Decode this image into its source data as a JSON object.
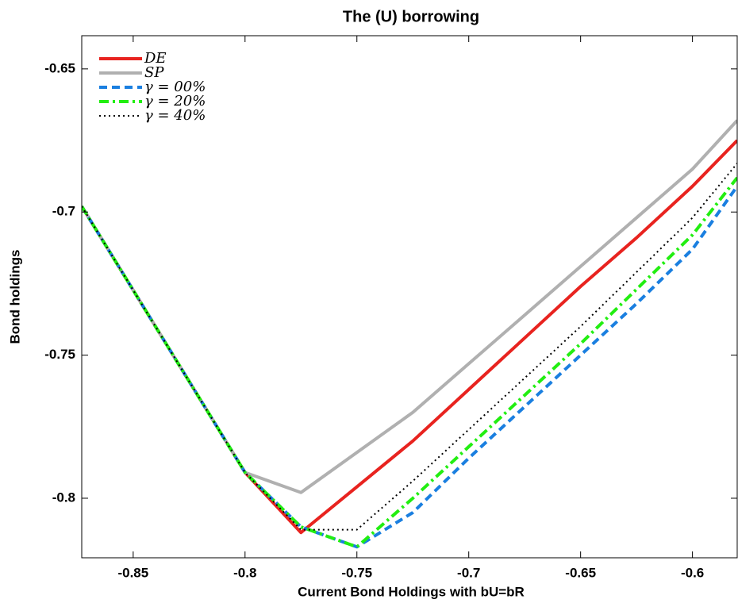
{
  "chart_data": {
    "type": "line",
    "title": "The (U) borrowing",
    "x_label": "Current Bond Holdings with bU=bR",
    "y_label": "Bond holdings",
    "x": [
      -0.873,
      -0.8,
      -0.775,
      -0.75,
      -0.725,
      -0.7,
      -0.675,
      -0.65,
      -0.625,
      -0.6,
      -0.58
    ],
    "series": [
      {
        "name": "DE",
        "color": "#e8231f",
        "style": "solid",
        "values": [
          -0.698,
          -0.791,
          -0.812,
          -0.796,
          -0.78,
          -0.762,
          -0.744,
          -0.726,
          -0.709,
          -0.691,
          -0.675
        ]
      },
      {
        "name": "SP",
        "color": "#b0b0b0",
        "style": "solid",
        "values": [
          -0.698,
          -0.791,
          -0.798,
          -0.784,
          -0.77,
          -0.753,
          -0.736,
          -0.719,
          -0.702,
          -0.685,
          -0.668
        ]
      },
      {
        "name": "γ = 00%",
        "color": "#1a7fe0",
        "style": "dashed",
        "values": [
          -0.698,
          -0.791,
          -0.81,
          -0.817,
          -0.805,
          -0.786,
          -0.768,
          -0.75,
          -0.732,
          -0.713,
          -0.691
        ]
      },
      {
        "name": "γ = 20%",
        "color": "#22ee11",
        "style": "dashdot",
        "values": [
          -0.698,
          -0.791,
          -0.81,
          -0.817,
          -0.8,
          -0.782,
          -0.764,
          -0.746,
          -0.727,
          -0.708,
          -0.688
        ]
      },
      {
        "name": "γ = 40%",
        "color": "#000000",
        "style": "dotted",
        "values": [
          -0.698,
          -0.791,
          -0.811,
          -0.811,
          -0.794,
          -0.776,
          -0.758,
          -0.74,
          -0.721,
          -0.702,
          -0.683
        ]
      }
    ],
    "xlim": [
      -0.873,
      -0.58
    ],
    "ylim": [
      -0.8208,
      -0.6384
    ],
    "xticks": [
      -0.85,
      -0.8,
      -0.75,
      -0.7,
      -0.65,
      -0.6
    ],
    "yticks": [
      -0.8,
      -0.75,
      -0.7,
      -0.65
    ],
    "legend": "upper left",
    "grid": false
  }
}
